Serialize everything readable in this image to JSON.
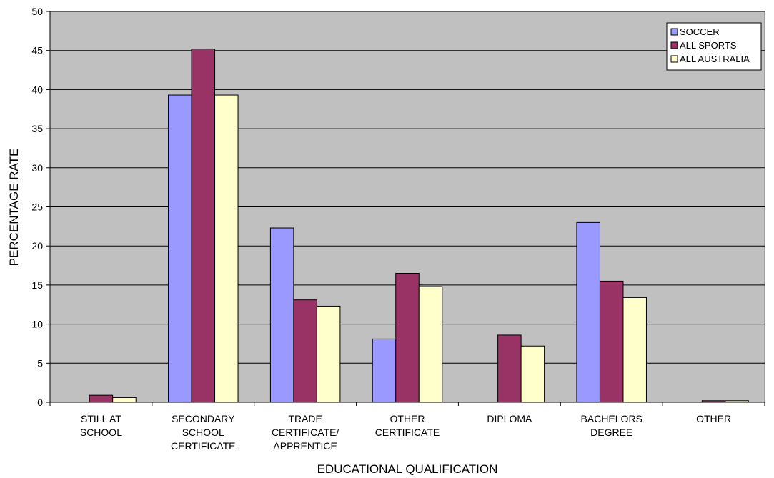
{
  "chart_data": {
    "type": "bar",
    "title": "",
    "xlabel": "EDUCATIONAL QUALIFICATION",
    "ylabel": "PERCENTAGE RATE",
    "ylim": [
      0,
      50
    ],
    "yticks": [
      0,
      5,
      10,
      15,
      20,
      25,
      30,
      35,
      40,
      45,
      50
    ],
    "grid": true,
    "legend_position": "top-right",
    "background_color": "#c0c0c0",
    "categories": [
      [
        "STILL AT",
        "SCHOOL"
      ],
      [
        "SECONDARY",
        "SCHOOL",
        "CERTIFICATE"
      ],
      [
        "TRADE",
        "CERTIFICATE/",
        "APPRENTICE"
      ],
      [
        "OTHER",
        "CERTIFICATE"
      ],
      [
        "DIPLOMA"
      ],
      [
        "BACHELORS",
        "DEGREE"
      ],
      [
        "OTHER"
      ]
    ],
    "series": [
      {
        "name": "SOCCER",
        "color": "#9999ff",
        "values": [
          0,
          39.3,
          22.3,
          8.1,
          0,
          23.0,
          0
        ]
      },
      {
        "name": "ALL SPORTS",
        "color": "#993366",
        "values": [
          0.9,
          45.2,
          13.1,
          16.5,
          8.6,
          15.5,
          0.2
        ]
      },
      {
        "name": "ALL AUSTRALIA",
        "color": "#ffffcc",
        "values": [
          0.6,
          39.3,
          12.3,
          14.8,
          7.2,
          13.4,
          0.2
        ]
      }
    ]
  }
}
